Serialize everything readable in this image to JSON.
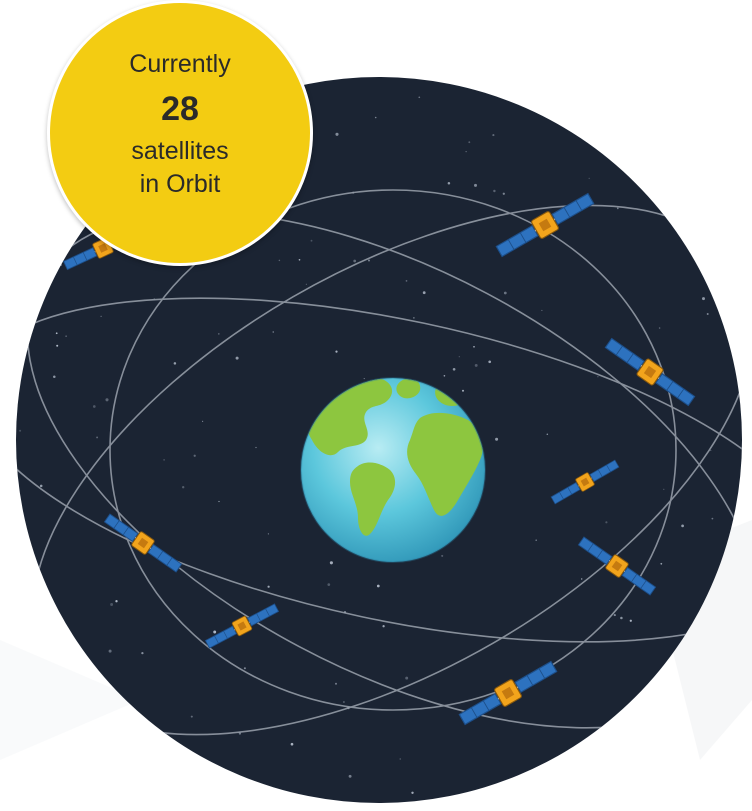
{
  "badge": {
    "line1": "Currently",
    "count": "28",
    "line3": "satellites",
    "line4": "in Orbit"
  },
  "colors": {
    "space": "#1b2433",
    "orbit": "#9aa2ad",
    "badge": "#f3cc12",
    "ocean": "#5cc7dc",
    "land": "#8dc63f",
    "panel": "#2d72bf",
    "satellite_body": "#f2a41c"
  },
  "icons": [
    "satellite-icon",
    "earth-icon",
    "star-icon"
  ]
}
